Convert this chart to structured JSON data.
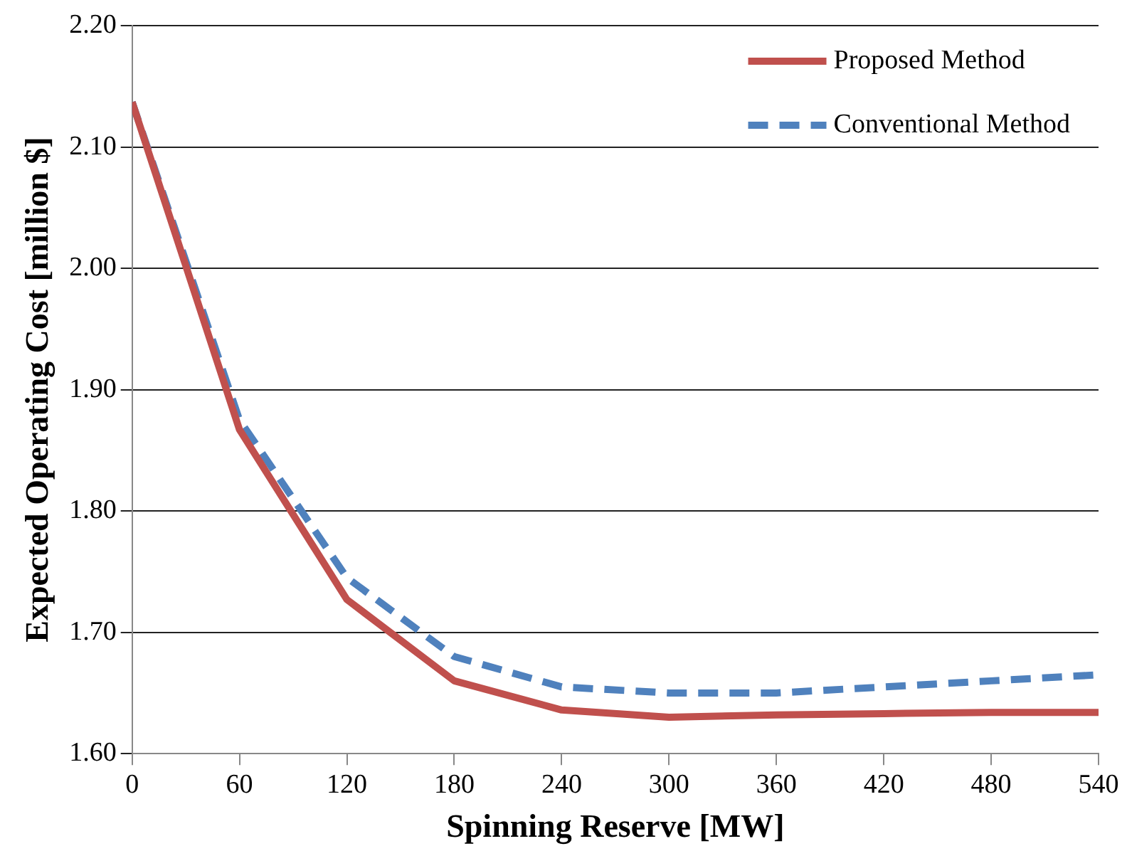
{
  "chart_data": {
    "type": "line",
    "xlabel": "Spinning Reserve [MW]",
    "ylabel": "Expected Operating Cost [million $]",
    "x": [
      0,
      60,
      120,
      180,
      240,
      300,
      360,
      420,
      480,
      540
    ],
    "series": [
      {
        "name": "Proposed Method",
        "color": "#c0504d",
        "line_style": "solid",
        "values": [
          2.137,
          1.867,
          1.727,
          1.66,
          1.636,
          1.63,
          1.632,
          1.633,
          1.634,
          1.634
        ]
      },
      {
        "name": "Conventional Method",
        "color": "#4f81bd",
        "line_style": "dashed",
        "values": [
          2.137,
          1.875,
          1.745,
          1.68,
          1.655,
          1.65,
          1.65,
          1.655,
          1.66,
          1.665
        ]
      }
    ],
    "xlim": [
      0,
      540
    ],
    "xticks": [
      0,
      60,
      120,
      180,
      240,
      300,
      360,
      420,
      480,
      540
    ],
    "ylim": [
      1.6,
      2.2
    ],
    "yticks": [
      {
        "value": 1.6,
        "label": "1.60"
      },
      {
        "value": 1.7,
        "label": "1.70"
      },
      {
        "value": 1.8,
        "label": "1.80"
      },
      {
        "value": 1.9,
        "label": "1.90"
      },
      {
        "value": 2.0,
        "label": "2.00"
      },
      {
        "value": 2.1,
        "label": "2.10"
      },
      {
        "value": 2.2,
        "label": "2.20"
      }
    ],
    "grid": "y",
    "legend": "top right",
    "marker": "none"
  }
}
